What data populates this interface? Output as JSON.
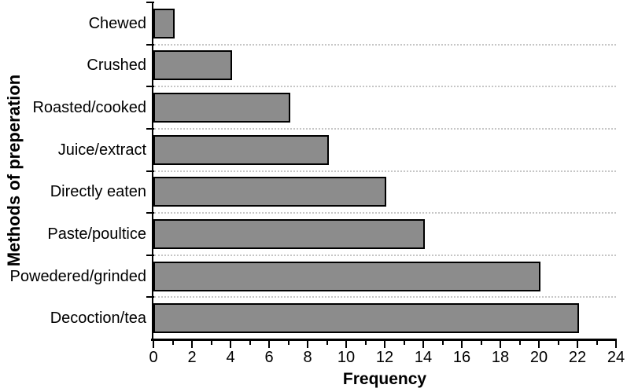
{
  "chart_data": {
    "type": "bar",
    "orientation": "horizontal",
    "title": "",
    "xlabel": "Frequency",
    "ylabel": "Methods of preperation",
    "categories": [
      "Chewed",
      "Crushed",
      "Roasted/cooked",
      "Juice/extract",
      "Directly eaten",
      "Paste/poultice",
      "Powedered/grinded",
      "Decoction/tea"
    ],
    "values": [
      1,
      4,
      7,
      9,
      12,
      14,
      20,
      22
    ],
    "xlim": [
      0,
      24
    ],
    "x_ticks": [
      0,
      2,
      4,
      6,
      8,
      10,
      12,
      14,
      16,
      18,
      20,
      22,
      24
    ],
    "x_minor_tick_step": 1,
    "grid": "dotted horizontal separators between category bands",
    "legend": "none",
    "colors": {
      "bar_fill": "#8c8c8c",
      "bar_border": "#000000",
      "axis": "#000000",
      "grid_dots": "#c6c6c6",
      "text": "#000000",
      "background": "#ffffff"
    }
  }
}
